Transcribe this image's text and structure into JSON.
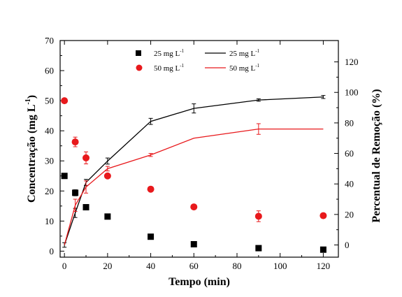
{
  "chart_data": {
    "type": "scatter",
    "title": "",
    "xlabel": "Tempo (min)",
    "ylabel_left_text": "Concentração (mg L",
    "ylabel_left_sup": "-1",
    "ylabel_left_close": ")",
    "ylabel_right": "Percentual de Remoção (%)",
    "xlim": [
      -2,
      127
    ],
    "ylim_left": [
      -2,
      70
    ],
    "ylim_right": [
      -8,
      134
    ],
    "xticks": [
      0,
      20,
      40,
      60,
      80,
      100,
      120
    ],
    "yticks_left": [
      0,
      10,
      20,
      30,
      40,
      50,
      60,
      70
    ],
    "yticks_right": [
      0,
      20,
      40,
      60,
      80,
      100,
      120
    ],
    "legend_position": "top",
    "legend": {
      "scatter_black": {
        "text": "25 mg L",
        "sup": "-1"
      },
      "scatter_red": {
        "text": "50 mg L",
        "sup": "-1"
      },
      "line_black": {
        "text": "25 mg L",
        "sup": "-1"
      },
      "line_red": {
        "text": "50 mg L",
        "sup": "-1"
      }
    },
    "series": [
      {
        "id": "conc-25",
        "legend_key": "scatter_black",
        "kind": "scatter",
        "marker": "square",
        "axis": "left",
        "color": "#000000",
        "x": [
          0,
          5,
          10,
          20,
          40,
          60,
          90,
          120
        ],
        "y": [
          25.0,
          19.4,
          14.6,
          11.5,
          4.8,
          2.3,
          1.0,
          0.5
        ],
        "err": [
          0,
          1.0,
          0,
          0,
          0,
          0,
          0,
          0
        ]
      },
      {
        "id": "conc-50",
        "legend_key": "scatter_red",
        "kind": "scatter",
        "marker": "circle",
        "axis": "left",
        "color": "#e8191c",
        "x": [
          0,
          5,
          10,
          20,
          40,
          60,
          90,
          120
        ],
        "y": [
          50.0,
          36.3,
          31.0,
          25.0,
          20.6,
          14.7,
          11.6,
          11.8
        ],
        "err": [
          0,
          1.6,
          2.0,
          0,
          0,
          0,
          1.8,
          0
        ]
      },
      {
        "id": "rem-25",
        "legend_key": "line_black",
        "kind": "line",
        "axis": "right",
        "color": "#000000",
        "x": [
          0,
          5,
          10,
          20,
          40,
          60,
          90,
          120
        ],
        "y": [
          0,
          21,
          41,
          55,
          81,
          89.5,
          95,
          97
        ],
        "err": [
          1.5,
          3,
          2,
          2,
          2,
          3,
          0.8,
          1
        ]
      },
      {
        "id": "rem-50",
        "legend_key": "line_red",
        "kind": "line",
        "axis": "right",
        "color": "#e8191c",
        "x": [
          0,
          5,
          10,
          20,
          40,
          60,
          90,
          120
        ],
        "y": [
          0,
          26,
          38,
          50,
          59,
          70,
          76,
          76
        ],
        "err": [
          0,
          4,
          4,
          1.5,
          1,
          0,
          3.5,
          0
        ]
      }
    ]
  }
}
